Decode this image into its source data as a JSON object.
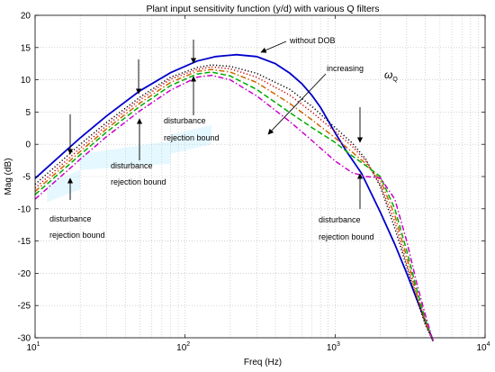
{
  "chart_data": {
    "type": "line",
    "title": "Plant input sensitivity function (y/d) with various Q filters",
    "xlabel": "Freq (Hz)",
    "ylabel": "Mag (dB)",
    "xscale": "log",
    "xlim": [
      10,
      10000
    ],
    "ylim": [
      -30,
      20
    ],
    "grid": true,
    "legend": "none",
    "x_ticks": [
      {
        "base": "10",
        "exp": "1"
      },
      {
        "base": "10",
        "exp": "2"
      },
      {
        "base": "10",
        "exp": "3"
      },
      {
        "base": "10",
        "exp": "4"
      }
    ],
    "y_ticks": [
      "20",
      "15",
      "10",
      "5",
      "0",
      "-5",
      "-10",
      "-15",
      "-20",
      "-25",
      "-30"
    ],
    "series": [
      {
        "color": "#0000cc",
        "dash": "solid",
        "points": [
          [
            10,
            -5.3
          ],
          [
            15,
            -1.6
          ],
          [
            20,
            1
          ],
          [
            30,
            4.4
          ],
          [
            50,
            8.3
          ],
          [
            80,
            11.1
          ],
          [
            120,
            12.9
          ],
          [
            160,
            13.6
          ],
          [
            220,
            13.9
          ],
          [
            300,
            13.6
          ],
          [
            400,
            12.5
          ],
          [
            500,
            11.0
          ],
          [
            600,
            9.4
          ],
          [
            700,
            7.6
          ],
          [
            800,
            5.7
          ],
          [
            1000,
            1.8
          ],
          [
            1200,
            -1.2
          ],
          [
            1500,
            -4.5
          ],
          [
            2000,
            -10.5
          ],
          [
            2500,
            -15.5
          ],
          [
            3000,
            -20
          ],
          [
            3500,
            -24
          ],
          [
            4000,
            -27.5
          ],
          [
            4500,
            -30.5
          ]
        ]
      },
      {
        "color": "#000000",
        "dash": "1.2,2.4",
        "points": [
          [
            10,
            -6.2
          ],
          [
            15,
            -2.6
          ],
          [
            20,
            0
          ],
          [
            30,
            3.4
          ],
          [
            50,
            7.3
          ],
          [
            80,
            10.4
          ],
          [
            120,
            11.9
          ],
          [
            150,
            12.3
          ],
          [
            200,
            12.1
          ],
          [
            300,
            11.0
          ],
          [
            500,
            8.5
          ],
          [
            700,
            5.9
          ],
          [
            1000,
            2.6
          ],
          [
            1300,
            0.2
          ],
          [
            1600,
            -2.3
          ],
          [
            2000,
            -6.5
          ],
          [
            2500,
            -13
          ],
          [
            3000,
            -19
          ],
          [
            3500,
            -24
          ],
          [
            4000,
            -28
          ],
          [
            4500,
            -30.5
          ]
        ]
      },
      {
        "color": "#cc0000",
        "dash": "1.2,2.4",
        "points": [
          [
            10,
            -6.8
          ],
          [
            15,
            -3.2
          ],
          [
            20,
            -0.6
          ],
          [
            30,
            2.9
          ],
          [
            50,
            6.9
          ],
          [
            80,
            10.1
          ],
          [
            120,
            11.6
          ],
          [
            150,
            12.0
          ],
          [
            200,
            11.7
          ],
          [
            300,
            10.4
          ],
          [
            500,
            7.6
          ],
          [
            700,
            5.0
          ],
          [
            1000,
            2.0
          ],
          [
            1300,
            -0.3
          ],
          [
            1600,
            -2.6
          ],
          [
            2000,
            -6.2
          ],
          [
            2500,
            -12
          ],
          [
            3000,
            -18.5
          ],
          [
            3500,
            -23.5
          ],
          [
            4000,
            -27.8
          ],
          [
            4500,
            -30.5
          ]
        ]
      },
      {
        "color": "#cc6600",
        "dash": "6,2.5,1.5,2.5",
        "points": [
          [
            10,
            -7.3
          ],
          [
            15,
            -3.7
          ],
          [
            20,
            -1.1
          ],
          [
            30,
            2.4
          ],
          [
            50,
            6.4
          ],
          [
            80,
            9.6
          ],
          [
            120,
            11.3
          ],
          [
            150,
            11.6
          ],
          [
            200,
            11.2
          ],
          [
            300,
            9.6
          ],
          [
            500,
            6.3
          ],
          [
            700,
            3.8
          ],
          [
            1000,
            1.0
          ],
          [
            1300,
            -1.2
          ],
          [
            1600,
            -3.0
          ],
          [
            2000,
            -5.5
          ],
          [
            2500,
            -11
          ],
          [
            3000,
            -17.5
          ],
          [
            3500,
            -23
          ],
          [
            4000,
            -27.5
          ],
          [
            4500,
            -30.5
          ]
        ]
      },
      {
        "color": "#00aa00",
        "dash": "6,3",
        "points": [
          [
            10,
            -7.8
          ],
          [
            15,
            -4.2
          ],
          [
            20,
            -1.6
          ],
          [
            30,
            1.9
          ],
          [
            50,
            5.9
          ],
          [
            80,
            9.1
          ],
          [
            120,
            10.9
          ],
          [
            150,
            11.2
          ],
          [
            200,
            10.6
          ],
          [
            300,
            8.5
          ],
          [
            500,
            4.9
          ],
          [
            700,
            2.6
          ],
          [
            1000,
            0.3
          ],
          [
            1300,
            -1.8
          ],
          [
            1600,
            -3.3
          ],
          [
            2000,
            -5.0
          ],
          [
            2500,
            -10
          ],
          [
            3000,
            -16.5
          ],
          [
            3500,
            -22.5
          ],
          [
            4000,
            -27.2
          ],
          [
            4500,
            -30.5
          ]
        ]
      },
      {
        "color": "#cc00cc",
        "dash": "6,2.5,1.5,2.5",
        "points": [
          [
            10,
            -8.5
          ],
          [
            15,
            -4.9
          ],
          [
            20,
            -2.3
          ],
          [
            30,
            1.2
          ],
          [
            50,
            5.2
          ],
          [
            80,
            8.4
          ],
          [
            120,
            10.4
          ],
          [
            150,
            10.7
          ],
          [
            200,
            10.0
          ],
          [
            300,
            7.5
          ],
          [
            500,
            3.5
          ],
          [
            700,
            0.6
          ],
          [
            1000,
            -2.6
          ],
          [
            1300,
            -4.4
          ],
          [
            1600,
            -5.0
          ],
          [
            2000,
            -5.2
          ],
          [
            2500,
            -8.5
          ],
          [
            3000,
            -15
          ],
          [
            3500,
            -21.5
          ],
          [
            4000,
            -26.5
          ],
          [
            4500,
            -30.5
          ]
        ]
      }
    ],
    "annotations": {
      "without_dob": "without DOB",
      "increasing": "increasing",
      "omega_main": "ω",
      "omega_sub": "Q",
      "disturbance": "disturbance",
      "rejection_bound": "rejection bound"
    },
    "bound_regions": [
      [
        [
          80,
          0.5
        ],
        [
          20,
          -1.5
        ],
        [
          20,
          -4
        ],
        [
          80,
          -3
        ]
      ],
      [
        [
          20,
          -4
        ],
        [
          12,
          -6
        ],
        [
          12,
          -9
        ],
        [
          20,
          -7
        ]
      ],
      [
        [
          150,
          3
        ],
        [
          80,
          1.5
        ],
        [
          80,
          -1.5
        ],
        [
          150,
          0
        ]
      ]
    ]
  }
}
